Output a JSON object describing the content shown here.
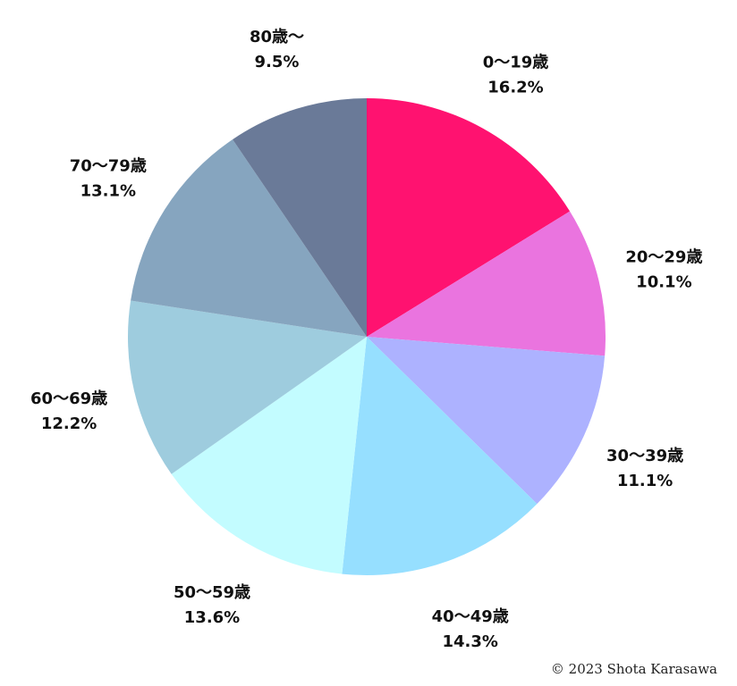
{
  "chart_data": {
    "type": "pie",
    "title": "",
    "start_angle_deg": 0,
    "direction": "clockwise",
    "slices": [
      {
        "label": "0〜19歳",
        "value": 16.2,
        "value_label": "16.2%",
        "color": "#FF1270"
      },
      {
        "label": "20〜29歳",
        "value": 10.1,
        "value_label": "10.1%",
        "color": "#EA74DF"
      },
      {
        "label": "30〜39歳",
        "value": 11.1,
        "value_label": "11.1%",
        "color": "#ADB2FF"
      },
      {
        "label": "40〜49歳",
        "value": 14.3,
        "value_label": "14.3%",
        "color": "#96DFFF"
      },
      {
        "label": "50〜59歳",
        "value": 13.6,
        "value_label": "13.6%",
        "color": "#C3FCFF"
      },
      {
        "label": "60〜69歳",
        "value": 12.2,
        "value_label": "12.2%",
        "color": "#9ECCDE"
      },
      {
        "label": "70〜79歳",
        "value": 13.1,
        "value_label": "13.1%",
        "color": "#86A5BF"
      },
      {
        "label": "80歳〜",
        "value": 9.5,
        "value_label": "9.5%",
        "color": "#6A7A98"
      }
    ]
  },
  "copyright": "© 2023 Shota Karasawa"
}
